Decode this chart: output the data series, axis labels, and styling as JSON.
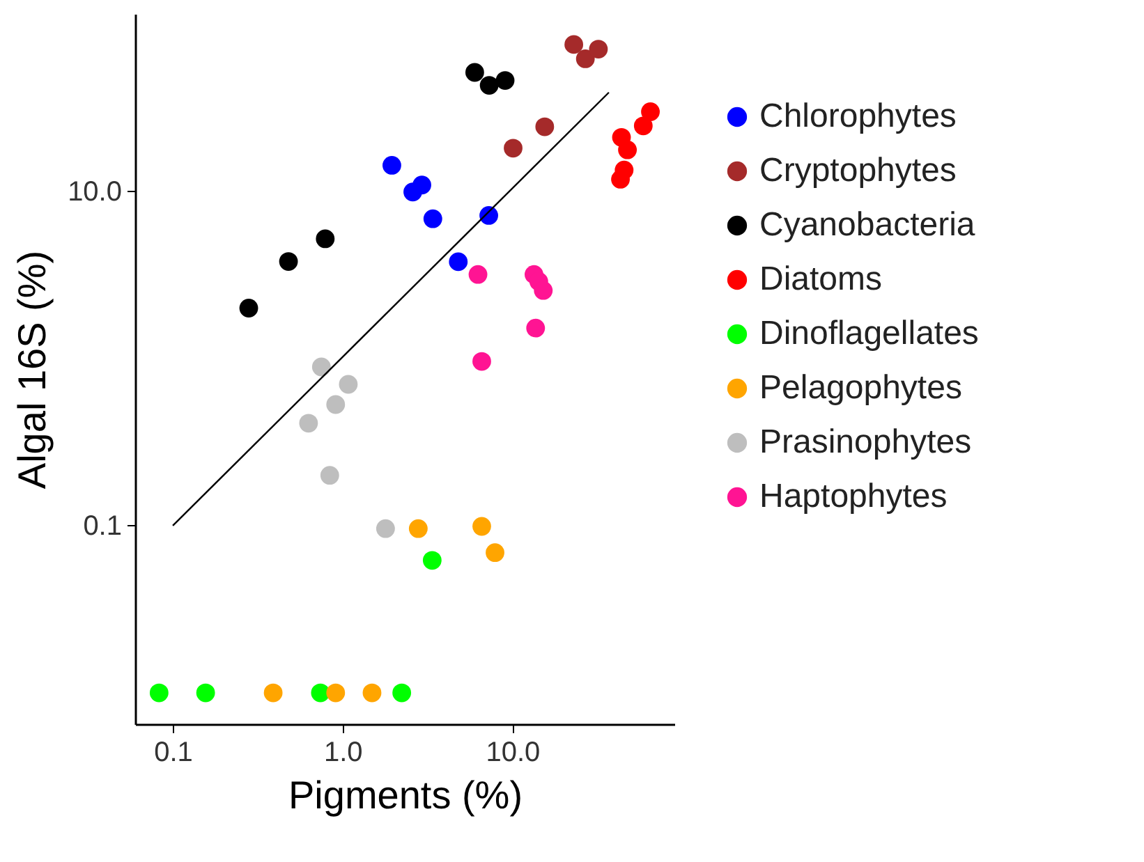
{
  "chart_data": {
    "type": "scatter",
    "xlabel": "Pigments (%)",
    "ylabel": "Algal 16S (%)",
    "log": "xy",
    "grid": false,
    "legend": "right",
    "marker": "circle",
    "xlim": [
      0.06,
      90
    ],
    "ylim": [
      0.0065,
      115
    ],
    "xticks": [
      {
        "value": 0.1,
        "label": "0.1"
      },
      {
        "value": 1,
        "label": "1.0"
      },
      {
        "value": 10,
        "label": "10.0"
      }
    ],
    "yticks": [
      {
        "value": 0.1,
        "label": "0.1"
      },
      {
        "value": 10,
        "label": "10.0"
      }
    ],
    "series": [
      {
        "name": "Chlorophytes",
        "color": "#0000ff",
        "x": [
          1.95,
          2.93,
          2.59,
          3.4,
          7.26,
          4.8
        ],
        "values": [
          14.3,
          10.9,
          9.9,
          6.85,
          7.17,
          3.79
        ]
      },
      {
        "name": "Cryptophytes",
        "color": "#a52a2a",
        "x": [
          23,
          26.9,
          32.1,
          15.5,
          10.1
        ],
        "values": [
          75.5,
          62,
          70.8,
          24.3,
          18.1
        ]
      },
      {
        "name": "Cyanobacteria",
        "color": "#000000",
        "x": [
          6.0,
          7.3,
          9.06,
          0.79,
          0.48,
          0.28
        ],
        "values": [
          51.4,
          43,
          46,
          5.2,
          3.8,
          2.0
        ]
      },
      {
        "name": "Diatoms",
        "color": "#ff0000",
        "x": [
          65,
          59,
          43.9,
          47.6,
          45.5,
          43.3
        ],
        "values": [
          29.9,
          24.6,
          21,
          17.7,
          13.4,
          11.8
        ]
      },
      {
        "name": "Dinoflagellates",
        "color": "#00ff00",
        "x": [
          3.37,
          0.083,
          0.156,
          0.74,
          2.23
        ],
        "values": [
          0.062,
          0.01,
          0.01,
          0.01,
          0.01
        ]
      },
      {
        "name": "Pelagophytes",
        "color": "#ffa500",
        "x": [
          2.79,
          6.6,
          7.9,
          0.39,
          0.91,
          1.49
        ],
        "values": [
          0.096,
          0.099,
          0.069,
          0.01,
          0.01,
          0.01
        ]
      },
      {
        "name": "Prasinophytes",
        "color": "#bebebe",
        "x": [
          0.75,
          1.08,
          0.91,
          0.63,
          0.84,
          1.79
        ],
        "values": [
          0.89,
          0.7,
          0.53,
          0.41,
          0.2,
          0.096
        ]
      },
      {
        "name": "Haptophytes",
        "color": "#ff1493",
        "x": [
          6.27,
          13.4,
          14.3,
          15.2,
          13.7,
          6.6
        ],
        "values": [
          3.18,
          3.18,
          2.89,
          2.55,
          1.52,
          0.96
        ]
      },
      {
        "type": "line",
        "marker": "none",
        "color": "#000000",
        "x": [
          0.1,
          37
        ],
        "values": [
          0.1,
          39
        ]
      }
    ]
  }
}
